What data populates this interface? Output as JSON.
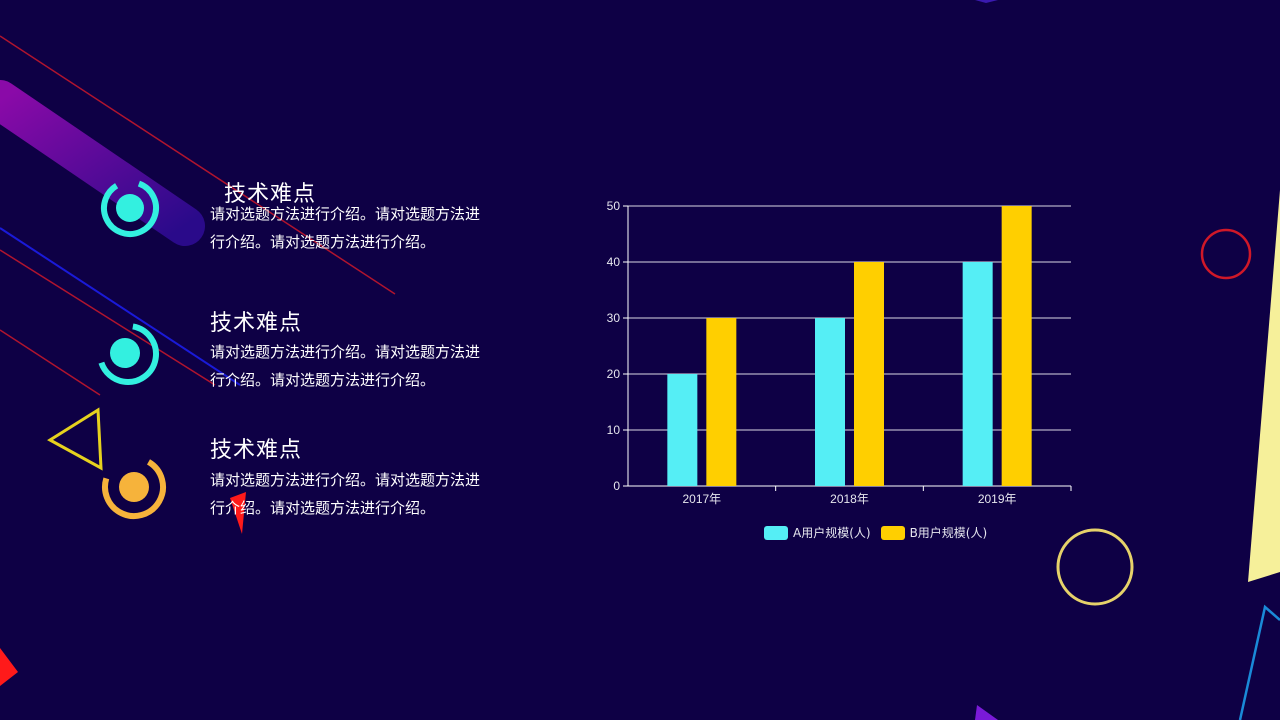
{
  "items": [
    {
      "title": "技术难点",
      "description": "请对选题方法进行介绍。请对选题方法进行介绍。请对选题方法进行介绍。"
    },
    {
      "title": "技术难点",
      "description": "请对选题方法进行介绍。请对选题方法进行介绍。请对选题方法进行介绍。"
    },
    {
      "title": "技术难点",
      "description": "请对选题方法进行介绍。请对选题方法进行介绍。请对选题方法进行介绍。"
    }
  ],
  "colors": {
    "background": "#0e0045",
    "series_a": "#55eef5",
    "series_b": "#ffcf00",
    "icon_cyan": "#33f0e0",
    "icon_orange": "#f6b33b"
  },
  "chart_data": {
    "type": "bar",
    "categories": [
      "2017年",
      "2018年",
      "2019年"
    ],
    "series": [
      {
        "name": "A用户规模(人)",
        "values": [
          20,
          30,
          40
        ],
        "color": "#55eef5"
      },
      {
        "name": "B用户规模(人)",
        "values": [
          30,
          40,
          50
        ],
        "color": "#ffcf00"
      }
    ],
    "y_ticks": [
      "0",
      "10",
      "20",
      "30",
      "40",
      "50"
    ],
    "ylim": [
      0,
      50
    ],
    "grid": true,
    "legend_position": "bottom"
  }
}
